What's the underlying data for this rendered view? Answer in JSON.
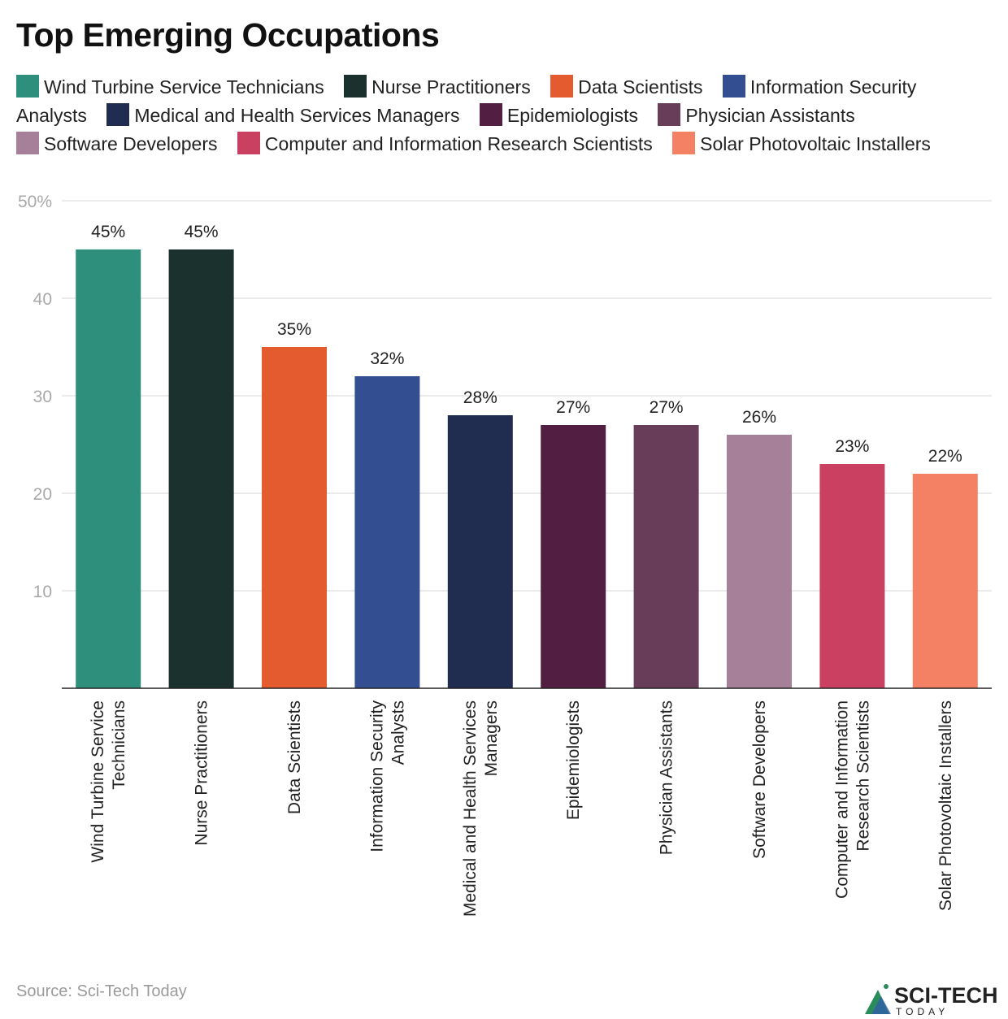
{
  "chart_data": {
    "type": "bar",
    "title": "Top Emerging Occupations",
    "categories": [
      "Wind Turbine Service Technicians",
      "Nurse Practitioners",
      "Data Scientists",
      "Information Security Analysts",
      "Medical and Health Services Managers",
      "Epidemiologists",
      "Physician Assistants",
      "Software Developers",
      "Computer and Information Research Scientists",
      "Solar Photovoltaic Installers"
    ],
    "tick_labels": [
      [
        "Wind Turbine Service",
        "Technicians"
      ],
      [
        "Nurse Practitioners"
      ],
      [
        "Data Scientists"
      ],
      [
        "Information Security",
        "Analysts"
      ],
      [
        "Medical and Health Services",
        "Managers"
      ],
      [
        "Epidemiologists"
      ],
      [
        "Physician Assistants"
      ],
      [
        "Software Developers"
      ],
      [
        "Computer and Information",
        "Research Scientists"
      ],
      [
        "Solar Photovoltaic Installers"
      ]
    ],
    "values": [
      45,
      45,
      35,
      32,
      28,
      27,
      27,
      26,
      23,
      22
    ],
    "data_labels": [
      "45%",
      "45%",
      "35%",
      "32%",
      "28%",
      "27%",
      "27%",
      "26%",
      "23%",
      "22%"
    ],
    "colors": [
      "#2e8f7c",
      "#1a312d",
      "#e45b30",
      "#334f91",
      "#202d50",
      "#521f42",
      "#683d5a",
      "#a68099",
      "#c94060",
      "#f48163"
    ],
    "ylim": [
      0,
      50
    ],
    "yticks": [
      10,
      20,
      30,
      40,
      50
    ],
    "ytick_labels": [
      "10",
      "20",
      "30",
      "40",
      "50%"
    ],
    "grid": true,
    "legend": "top",
    "xlabel": "",
    "ylabel": ""
  },
  "source": "Source: Sci-Tech Today",
  "logo": {
    "text": "SCI-TECH",
    "subtext": "TODAY"
  }
}
